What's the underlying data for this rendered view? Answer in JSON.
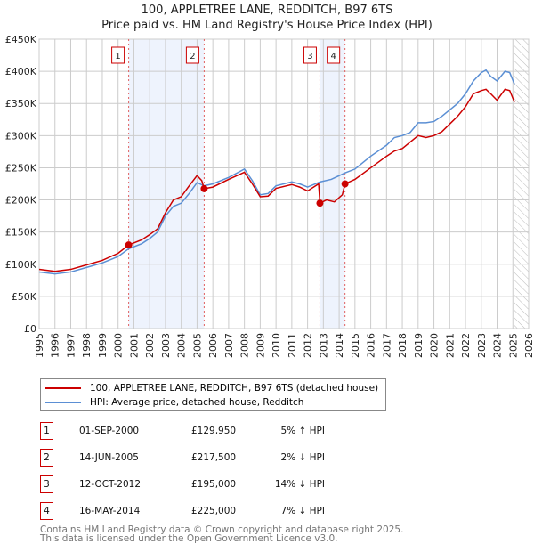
{
  "title": "100, APPLETREE LANE, REDDITCH, B97 6TS",
  "subtitle": "Price paid vs. HM Land Registry's House Price Index (HPI)",
  "chart_data": {
    "type": "line",
    "xlim": [
      1995,
      2026
    ],
    "ylim": [
      0,
      450000
    ],
    "yticks": [
      {
        "v": 0,
        "l": "£0"
      },
      {
        "v": 50000,
        "l": "£50K"
      },
      {
        "v": 100000,
        "l": "£100K"
      },
      {
        "v": 150000,
        "l": "£150K"
      },
      {
        "v": 200000,
        "l": "£200K"
      },
      {
        "v": 250000,
        "l": "£250K"
      },
      {
        "v": 300000,
        "l": "£300K"
      },
      {
        "v": 350000,
        "l": "£350K"
      },
      {
        "v": 400000,
        "l": "£400K"
      },
      {
        "v": 450000,
        "l": "£450K"
      }
    ],
    "xticks": [
      "1995",
      "1996",
      "1997",
      "1998",
      "1999",
      "2000",
      "2001",
      "2002",
      "2003",
      "2004",
      "2005",
      "2006",
      "2007",
      "2008",
      "2009",
      "2010",
      "2011",
      "2012",
      "2013",
      "2014",
      "2015",
      "2016",
      "2017",
      "2018",
      "2019",
      "2020",
      "2021",
      "2022",
      "2023",
      "2024",
      "2025",
      "2026"
    ],
    "shaded": [
      [
        2000.67,
        2005.45
      ],
      [
        2012.78,
        2014.37
      ]
    ],
    "forecast_start": 2025.1,
    "series": [
      {
        "name": "100, APPLETREE LANE, REDDITCH, B97 6TS (detached house)",
        "color": "#cc0000",
        "x": [
          1995,
          1996,
          1997,
          1998,
          1999,
          2000,
          2000.67,
          2001.5,
          2002,
          2002.5,
          2003,
          2003.5,
          2004,
          2004.5,
          2005,
          2005.3,
          2005.45,
          2006,
          2007,
          2008,
          2008.5,
          2009,
          2009.5,
          2010,
          2011,
          2011.5,
          2012,
          2012.7,
          2012.78,
          2013.2,
          2013.7,
          2014.2,
          2014.37,
          2015,
          2016,
          2017,
          2017.5,
          2018,
          2018.5,
          2019,
          2019.5,
          2020,
          2020.5,
          2021,
          2021.5,
          2022,
          2022.5,
          2023,
          2023.3,
          2023.6,
          2024,
          2024.5,
          2024.8,
          2025.1
        ],
        "y": [
          92000,
          89000,
          92000,
          99000,
          106000,
          117000,
          129950,
          138000,
          146000,
          155000,
          180000,
          200000,
          205000,
          222000,
          238000,
          230000,
          217500,
          220000,
          232000,
          243000,
          225000,
          205000,
          206000,
          218000,
          224000,
          220000,
          214000,
          225000,
          195000,
          200000,
          197000,
          208000,
          225000,
          232000,
          250000,
          268000,
          276000,
          280000,
          290000,
          300000,
          297000,
          300000,
          306000,
          318000,
          330000,
          345000,
          365000,
          370000,
          372000,
          365000,
          355000,
          372000,
          370000,
          352000
        ]
      },
      {
        "name": "HPI: Average price, detached house, Redditch",
        "color": "#5b8fd4",
        "x": [
          1995,
          1996,
          1997,
          1998,
          1999,
          2000,
          2000.67,
          2001.5,
          2002,
          2002.5,
          2003,
          2003.5,
          2004,
          2004.5,
          2005,
          2005.45,
          2006,
          2007,
          2008,
          2008.5,
          2009,
          2009.5,
          2010,
          2011,
          2011.5,
          2012,
          2012.78,
          2013.5,
          2014.37,
          2015,
          2016,
          2017,
          2017.5,
          2018,
          2018.5,
          2019,
          2019.5,
          2020,
          2020.5,
          2021,
          2021.5,
          2022,
          2022.5,
          2023,
          2023.3,
          2023.6,
          2024,
          2024.5,
          2024.8,
          2025.1
        ],
        "y": [
          88000,
          85000,
          88000,
          95000,
          102000,
          112000,
          124000,
          132000,
          140000,
          150000,
          175000,
          190000,
          195000,
          210000,
          227000,
          222000,
          225000,
          235000,
          248000,
          230000,
          208000,
          210000,
          222000,
          228000,
          225000,
          220000,
          228000,
          232000,
          242000,
          248000,
          268000,
          285000,
          297000,
          300000,
          305000,
          320000,
          320000,
          322000,
          330000,
          340000,
          350000,
          365000,
          385000,
          398000,
          402000,
          392000,
          385000,
          400000,
          398000,
          380000
        ]
      }
    ],
    "sales": [
      {
        "n": "1",
        "x": 2000.67,
        "y": 129950,
        "date": "01-SEP-2000",
        "price": "£129,950",
        "hpi": "5% ↑ HPI"
      },
      {
        "n": "2",
        "x": 2005.45,
        "y": 217500,
        "date": "14-JUN-2005",
        "price": "£217,500",
        "hpi": "2% ↓ HPI"
      },
      {
        "n": "3",
        "x": 2012.78,
        "y": 195000,
        "date": "12-OCT-2012",
        "price": "£195,000",
        "hpi": "14% ↓ HPI"
      },
      {
        "n": "4",
        "x": 2014.37,
        "y": 225000,
        "date": "16-MAY-2014",
        "price": "£225,000",
        "hpi": "7% ↓ HPI"
      }
    ]
  },
  "footer": [
    "Contains HM Land Registry data © Crown copyright and database right 2025.",
    "This data is licensed under the Open Government Licence v3.0."
  ]
}
